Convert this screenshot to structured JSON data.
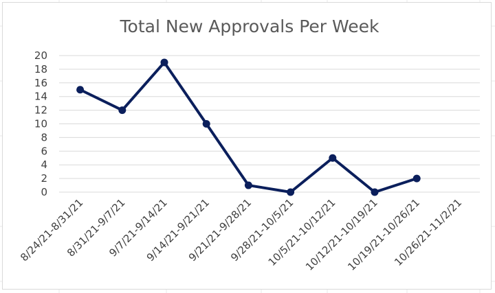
{
  "chart_data": {
    "type": "line",
    "title": "Total New Approvals Per Week",
    "xlabel": "",
    "ylabel": "",
    "categories": [
      "8/24/21-8/31/21",
      "8/31/21-9/7/21",
      "9/7/21-9/14/21",
      "9/14/21-9/21/21",
      "9/21/21-9/28/21",
      "9/28/21-10/5/21",
      "10/5/21-10/12/21",
      "10/12/21-10/19/21",
      "10/19/21-10/26/21",
      "10/26/21-11/2/21"
    ],
    "series": [
      {
        "values": [
          15,
          12,
          19,
          10,
          1,
          0,
          5,
          0,
          2,
          null
        ]
      }
    ],
    "ylim": [
      0,
      20
    ],
    "yticks": [
      0,
      2,
      4,
      6,
      8,
      10,
      12,
      14,
      16,
      18,
      20
    ],
    "grid": true,
    "legend": "none",
    "colors": {
      "line": "#0b1f5c",
      "grid": "#d9d9d9",
      "text": "#404040",
      "title": "#595959"
    }
  }
}
